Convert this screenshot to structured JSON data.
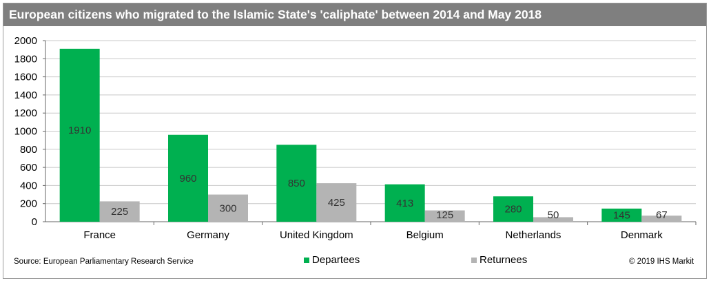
{
  "title": "European citizens who migrated to the Islamic State's 'caliphate' between 2014 and May 2018",
  "source": "Source: European Parliamentary Research Service",
  "copyright": "© 2019 IHS Markit",
  "colors": {
    "departees": "#00b050",
    "returnees": "#b4b4b4",
    "title_bar": "#7f7f7f"
  },
  "chart_data": {
    "type": "bar",
    "categories": [
      "France",
      "Germany",
      "United Kingdom",
      "Belgium",
      "Netherlands",
      "Denmark"
    ],
    "series": [
      {
        "name": "Departees",
        "values": [
          1910,
          960,
          850,
          413,
          280,
          145
        ]
      },
      {
        "name": "Returnees",
        "values": [
          225,
          300,
          425,
          125,
          50,
          67
        ]
      }
    ],
    "yticks": [
      0,
      200,
      400,
      600,
      800,
      1000,
      1200,
      1400,
      1600,
      1800,
      2000
    ],
    "ylim": [
      0,
      2000
    ],
    "grid": true,
    "legend_position": "bottom",
    "data_labels": true
  }
}
